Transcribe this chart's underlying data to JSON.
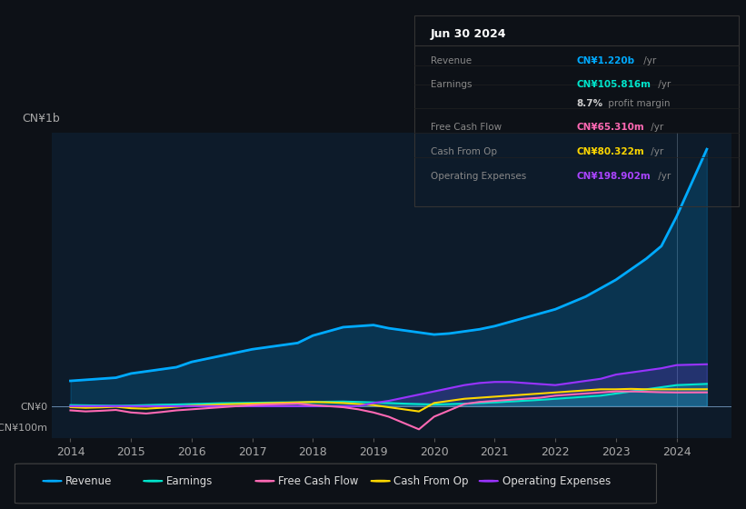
{
  "bg_color": "#0d1117",
  "chart_bg": "#0d1b2a",
  "title": "Jun 30 2024",
  "years": [
    2014,
    2014.25,
    2014.5,
    2014.75,
    2015,
    2015.25,
    2015.5,
    2015.75,
    2016,
    2016.25,
    2016.5,
    2016.75,
    2017,
    2017.25,
    2017.5,
    2017.75,
    2018,
    2018.25,
    2018.5,
    2018.75,
    2019,
    2019.25,
    2019.5,
    2019.75,
    2020,
    2020.25,
    2020.5,
    2020.75,
    2021,
    2021.25,
    2021.5,
    2021.75,
    2022,
    2022.25,
    2022.5,
    2022.75,
    2023,
    2023.25,
    2023.5,
    2023.75,
    2024,
    2024.5
  ],
  "revenue": [
    120,
    125,
    130,
    135,
    155,
    165,
    175,
    185,
    210,
    225,
    240,
    255,
    270,
    280,
    290,
    300,
    335,
    355,
    375,
    380,
    385,
    370,
    360,
    350,
    340,
    345,
    355,
    365,
    380,
    400,
    420,
    440,
    460,
    490,
    520,
    560,
    600,
    650,
    700,
    760,
    900,
    1220
  ],
  "earnings": [
    5,
    4,
    3,
    2,
    3,
    5,
    7,
    8,
    10,
    12,
    14,
    15,
    16,
    17,
    18,
    18,
    20,
    21,
    22,
    20,
    18,
    15,
    12,
    10,
    8,
    10,
    12,
    15,
    18,
    22,
    26,
    30,
    35,
    40,
    45,
    50,
    60,
    70,
    80,
    90,
    100,
    105.816
  ],
  "free_cash_flow": [
    -20,
    -25,
    -22,
    -18,
    -30,
    -35,
    -28,
    -20,
    -15,
    -10,
    -5,
    0,
    5,
    8,
    10,
    12,
    5,
    0,
    -5,
    -15,
    -30,
    -50,
    -80,
    -110,
    -50,
    -20,
    10,
    20,
    25,
    30,
    35,
    40,
    50,
    55,
    60,
    65,
    70,
    70,
    68,
    66,
    65,
    65.31
  ],
  "cash_from_op": [
    -5,
    -8,
    -6,
    -3,
    -10,
    -12,
    -8,
    -3,
    2,
    5,
    8,
    10,
    12,
    14,
    16,
    18,
    20,
    18,
    15,
    10,
    5,
    -5,
    -15,
    -25,
    15,
    25,
    35,
    40,
    45,
    50,
    55,
    60,
    65,
    70,
    75,
    80,
    80,
    82,
    80,
    80,
    80,
    80.322
  ],
  "operating_expenses": [
    0,
    0,
    0,
    0,
    0,
    0,
    0,
    0,
    0,
    0,
    0,
    0,
    0,
    0,
    0,
    0,
    0,
    0,
    0,
    0,
    15,
    25,
    40,
    55,
    70,
    85,
    100,
    110,
    115,
    115,
    110,
    105,
    100,
    110,
    120,
    130,
    150,
    160,
    170,
    180,
    195,
    198.902
  ],
  "revenue_color": "#00aaff",
  "earnings_color": "#00e5cc",
  "free_cash_flow_color": "#ff69b4",
  "cash_from_op_color": "#ffd700",
  "operating_expenses_color": "#9933ff",
  "xlim": [
    2013.7,
    2024.9
  ],
  "ylim_raw": [
    -150,
    1300
  ],
  "ytick_vals_raw": [
    -100,
    0
  ],
  "ytick_labels": [
    "-CN¥100m",
    "CN¥0"
  ],
  "ylabel_top": "CN¥1b",
  "xticks": [
    2014,
    2015,
    2016,
    2017,
    2018,
    2019,
    2020,
    2021,
    2022,
    2023,
    2024
  ],
  "info_title": "Jun 30 2024",
  "info_rows": [
    {
      "label": "Revenue",
      "value": "CN¥1.220b",
      "suffix": " /yr",
      "color": "#00aaff"
    },
    {
      "label": "Earnings",
      "value": "CN¥105.816m",
      "suffix": " /yr",
      "color": "#00e5cc"
    },
    {
      "label": "",
      "value": "8.7%",
      "suffix": " profit margin",
      "color": "#cccccc"
    },
    {
      "label": "Free Cash Flow",
      "value": "CN¥65.310m",
      "suffix": " /yr",
      "color": "#ff69b4"
    },
    {
      "label": "Cash From Op",
      "value": "CN¥80.322m",
      "suffix": " /yr",
      "color": "#ffd700"
    },
    {
      "label": "Operating Expenses",
      "value": "CN¥198.902m",
      "suffix": " /yr",
      "color": "#aa44ff"
    }
  ],
  "legend": [
    {
      "label": "Revenue",
      "color": "#00aaff"
    },
    {
      "label": "Earnings",
      "color": "#00e5cc"
    },
    {
      "label": "Free Cash Flow",
      "color": "#ff69b4"
    },
    {
      "label": "Cash From Op",
      "color": "#ffd700"
    },
    {
      "label": "Operating Expenses",
      "color": "#9933ff"
    }
  ]
}
